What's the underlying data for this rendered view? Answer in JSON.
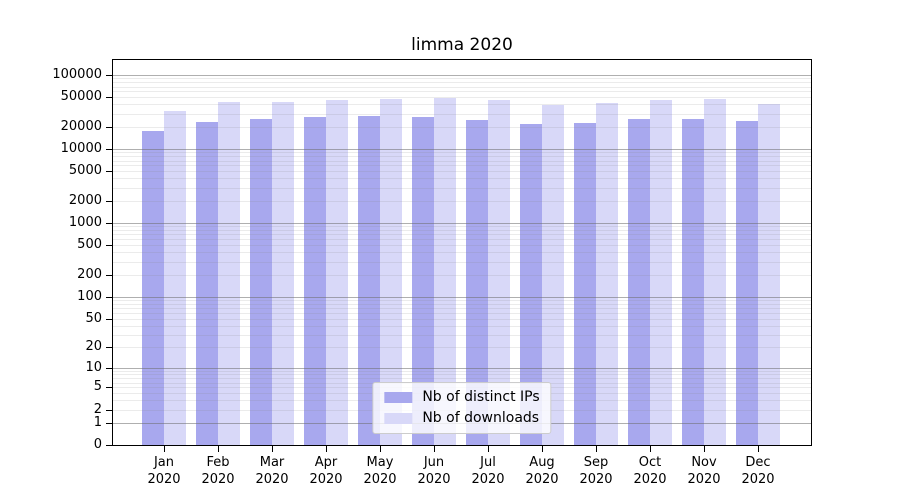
{
  "chart_data": {
    "type": "bar",
    "title": "limma 2020",
    "xlabel": "",
    "ylabel": "",
    "yscale": "log1p",
    "ylim": [
      0,
      160000
    ],
    "grid": "on",
    "legend_position": "bottom-center-inside",
    "categories": [
      "Jan\n2020",
      "Feb\n2020",
      "Mar\n2020",
      "Apr\n2020",
      "May\n2020",
      "Jun\n2020",
      "Jul\n2020",
      "Aug\n2020",
      "Sep\n2020",
      "Oct\n2020",
      "Nov\n2020",
      "Dec\n2020"
    ],
    "month_keys": [
      "jan",
      "feb",
      "mar",
      "apr",
      "may",
      "jun",
      "jul",
      "aug",
      "sep",
      "oct",
      "nov",
      "dec"
    ],
    "series": [
      {
        "name": "Nb of distinct IPs",
        "key": "distinct-ips",
        "color": "#a8a8ee",
        "values": [
          17300,
          23400,
          25200,
          27000,
          27800,
          27300,
          24900,
          21500,
          22700,
          25700,
          25700,
          24100
        ]
      },
      {
        "name": "Nb of downloads",
        "key": "downloads",
        "color": "#d8d8f8",
        "values": [
          33000,
          42800,
          43600,
          46400,
          47000,
          48400,
          46300,
          39000,
          41500,
          46400,
          47300,
          40500
        ]
      }
    ],
    "y_ticks": [
      100000,
      50000,
      20000,
      10000,
      5000,
      2000,
      1000,
      500,
      200,
      100,
      50,
      20,
      10,
      5,
      2,
      1,
      0
    ],
    "colors": {
      "background": "#ffffff",
      "spine": "#000000",
      "major_grid": "#b3b3b3",
      "minor_grid": "#ebebeb",
      "legend_border": "#cccccc",
      "text": "#000000"
    }
  }
}
